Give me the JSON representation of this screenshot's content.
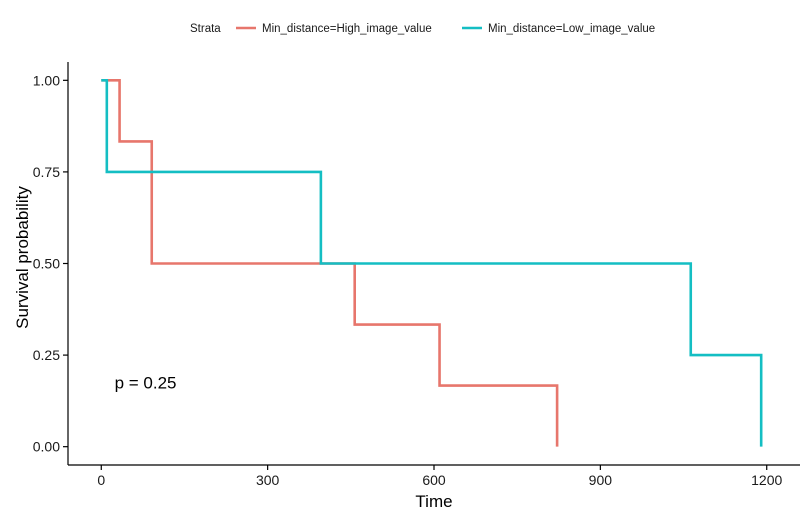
{
  "chart_data": {
    "type": "line",
    "step": true,
    "xlabel": "Time",
    "ylabel": "Survival probability",
    "xlim": [
      -60,
      1260
    ],
    "ylim": [
      -0.05,
      1.05
    ],
    "x_ticks": [
      0,
      300,
      600,
      900,
      1200
    ],
    "x_tick_labels": [
      "0",
      "300",
      "600",
      "900",
      "1200"
    ],
    "y_ticks": [
      0,
      0.25,
      0.5,
      0.75,
      1.0
    ],
    "y_tick_labels": [
      "0.00",
      "0.25",
      "0.50",
      "0.75",
      "1.00"
    ],
    "grid": false,
    "legend": {
      "title": "Strata",
      "placement": "top",
      "entries": [
        {
          "label": "Min_distance=High_image_value",
          "color": "#E7766C"
        },
        {
          "label": "Min_distance=Low_image_value",
          "color": "#14BEC3"
        }
      ]
    },
    "annotation": "p = 0.25",
    "series": [
      {
        "name": "Min_distance=High_image_value",
        "color": "#E7766C",
        "x": [
          0,
          33,
          91,
          91,
          457,
          610,
          822
        ],
        "y": [
          1.0,
          0.8333,
          0.6667,
          0.5,
          0.3333,
          0.1667,
          0.0
        ]
      },
      {
        "name": "Min_distance=Low_image_value",
        "color": "#14BEC3",
        "x": [
          0,
          10,
          396,
          1063,
          1190
        ],
        "y": [
          1.0,
          0.75,
          0.5,
          0.25,
          0.0
        ]
      }
    ]
  }
}
